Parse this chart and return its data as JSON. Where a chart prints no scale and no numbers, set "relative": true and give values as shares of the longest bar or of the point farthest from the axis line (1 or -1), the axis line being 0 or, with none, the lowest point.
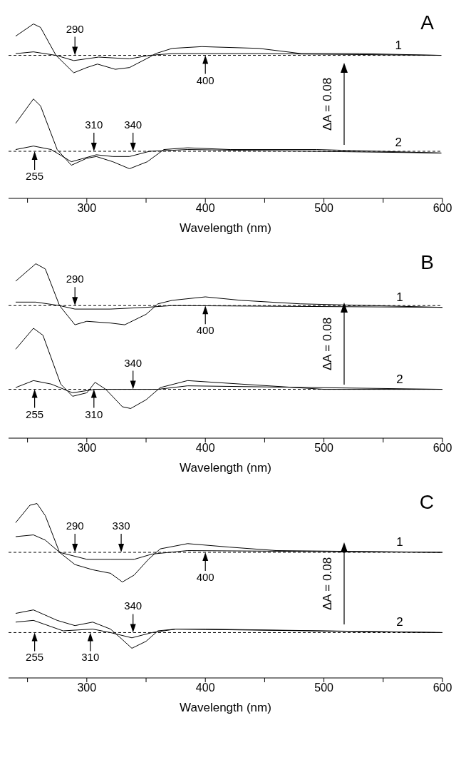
{
  "chart_data": [
    {
      "type": "line",
      "title": "A",
      "xlabel": "Wavelength (nm)",
      "relative": true,
      "marker": "none",
      "line_style": "solid",
      "xlim": [
        234,
        600
      ],
      "xticks": [
        {
          "value": 250,
          "label": null
        },
        300,
        {
          "value": 350,
          "label": null
        },
        400,
        {
          "value": 450,
          "label": null
        },
        500,
        {
          "value": 550,
          "label": null
        },
        600
      ],
      "series": [
        {
          "name": "1",
          "color": "#000000",
          "x": [
            240,
            255,
            261,
            274,
            289,
            300,
            309,
            324,
            336,
            353,
            358,
            372,
            397,
            445,
            481,
            530,
            599
          ],
          "values": [
            0.93,
            1.0,
            0.98,
            0.82,
            0.72,
            0.75,
            0.77,
            0.74,
            0.75,
            0.81,
            0.83,
            0.86,
            0.87,
            0.86,
            0.83,
            0.83,
            0.82
          ]
        },
        {
          "color": "#000000",
          "x": [
            240,
            255,
            274,
            289,
            310,
            336,
            353,
            372,
            445,
            599
          ],
          "values": [
            0.83,
            0.84,
            0.82,
            0.79,
            0.81,
            0.8,
            0.82,
            0.83,
            0.83,
            0.82
          ]
        },
        {
          "name": "2",
          "color": "#000000",
          "x": [
            240,
            255,
            261,
            275,
            287,
            300,
            308,
            322,
            336,
            351,
            365,
            385,
            421,
            494,
            599
          ],
          "values": [
            0.43,
            0.57,
            0.53,
            0.28,
            0.19,
            0.23,
            0.24,
            0.21,
            0.17,
            0.21,
            0.28,
            0.29,
            0.28,
            0.28,
            0.26
          ]
        },
        {
          "color": "#000000",
          "x": [
            240,
            255,
            270,
            287,
            308,
            322,
            336,
            353,
            385,
            599
          ],
          "values": [
            0.28,
            0.3,
            0.28,
            0.21,
            0.25,
            0.24,
            0.24,
            0.27,
            0.28,
            0.26
          ]
        }
      ],
      "ref_lines": [
        {
          "axis": "y",
          "value": 0.82,
          "line_style": "dashed",
          "color": "#000000"
        },
        {
          "axis": "y",
          "value": 0.27,
          "line_style": "dashed",
          "color": "#000000"
        }
      ],
      "annotations": [
        {
          "text": "290",
          "x": 290,
          "y": 0.82
        },
        {
          "text": "400",
          "x": 400,
          "y": 0.82
        },
        {
          "text": "310",
          "x": 306,
          "y": 0.27
        },
        {
          "text": "340",
          "x": 339,
          "y": 0.27
        },
        {
          "text": "255",
          "x": 256,
          "y": 0.27
        },
        "ΔA = 0.08"
      ]
    },
    {
      "type": "line",
      "title": "B",
      "xlabel": "Wavelength (nm)",
      "relative": true,
      "marker": "none",
      "line_style": "solid",
      "xlim": [
        234,
        600
      ],
      "xticks": [
        {
          "value": 250,
          "label": null
        },
        300,
        {
          "value": 350,
          "label": null
        },
        400,
        {
          "value": 450,
          "label": null
        },
        500,
        {
          "value": 550,
          "label": null
        },
        600
      ],
      "series": [
        {
          "name": "1",
          "color": "#000000",
          "x": [
            240,
            257,
            265,
            277,
            290,
            300,
            320,
            332,
            350,
            360,
            372,
            400,
            430,
            480,
            600
          ],
          "values": [
            0.9,
            1.0,
            0.97,
            0.76,
            0.65,
            0.67,
            0.66,
            0.65,
            0.71,
            0.77,
            0.79,
            0.81,
            0.79,
            0.77,
            0.75
          ]
        },
        {
          "color": "#000000",
          "x": [
            240,
            257,
            277,
            290,
            320,
            350,
            372,
            600
          ],
          "values": [
            0.78,
            0.78,
            0.76,
            0.74,
            0.74,
            0.75,
            0.76,
            0.75
          ]
        },
        {
          "name": "2",
          "color": "#000000",
          "x": [
            240,
            255,
            263,
            278,
            288,
            300,
            307,
            316,
            330,
            337,
            350,
            362,
            385,
            430,
            500,
            600
          ],
          "values": [
            0.51,
            0.63,
            0.59,
            0.31,
            0.24,
            0.26,
            0.32,
            0.28,
            0.18,
            0.17,
            0.22,
            0.29,
            0.33,
            0.31,
            0.28,
            0.28
          ]
        },
        {
          "color": "#000000",
          "x": [
            240,
            255,
            270,
            288,
            307,
            337,
            360,
            385,
            600
          ],
          "values": [
            0.29,
            0.33,
            0.31,
            0.26,
            0.28,
            0.28,
            0.28,
            0.3,
            0.28
          ]
        }
      ],
      "ref_lines": [
        {
          "axis": "y",
          "value": 0.76,
          "line_style": "dashed",
          "color": "#000000"
        },
        {
          "axis": "y",
          "value": 0.28,
          "line_style": "dashed",
          "color": "#000000"
        }
      ],
      "annotations": [
        {
          "text": "290",
          "x": 290,
          "y": 0.76
        },
        {
          "text": "400",
          "x": 400,
          "y": 0.76
        },
        {
          "text": "310",
          "x": 306,
          "y": 0.28
        },
        {
          "text": "340",
          "x": 339,
          "y": 0.28
        },
        {
          "text": "255",
          "x": 256,
          "y": 0.28
        },
        "ΔA = 0.08"
      ]
    },
    {
      "type": "line",
      "title": "C",
      "xlabel": "Wavelength (nm)",
      "relative": true,
      "marker": "none",
      "line_style": "solid",
      "xlim": [
        234,
        600
      ],
      "xticks": [
        {
          "value": 250,
          "label": null
        },
        300,
        {
          "value": 350,
          "label": null
        },
        400,
        {
          "value": 450,
          "label": null
        },
        500,
        {
          "value": 550,
          "label": null
        },
        600
      ],
      "series": [
        {
          "name": "1",
          "color": "#000000",
          "x": [
            240,
            252,
            258,
            265,
            277,
            290,
            305,
            320,
            330,
            340,
            352,
            362,
            385,
            420,
            460,
            600
          ],
          "values": [
            0.89,
            0.99,
            1.0,
            0.93,
            0.72,
            0.65,
            0.62,
            0.6,
            0.55,
            0.59,
            0.68,
            0.74,
            0.77,
            0.75,
            0.73,
            0.72
          ]
        },
        {
          "color": "#000000",
          "x": [
            240,
            255,
            265,
            277,
            300,
            320,
            340,
            355,
            385,
            600
          ],
          "values": [
            0.81,
            0.82,
            0.79,
            0.72,
            0.68,
            0.68,
            0.68,
            0.71,
            0.73,
            0.72
          ]
        },
        {
          "name": "2",
          "color": "#000000",
          "x": [
            240,
            255,
            275,
            290,
            305,
            320,
            330,
            338,
            350,
            360,
            375,
            400,
            600
          ],
          "values": [
            0.37,
            0.39,
            0.33,
            0.3,
            0.32,
            0.28,
            0.22,
            0.17,
            0.21,
            0.27,
            0.28,
            0.28,
            0.26
          ]
        },
        {
          "color": "#000000",
          "x": [
            240,
            255,
            280,
            305,
            320,
            338,
            355,
            375,
            600
          ],
          "values": [
            0.32,
            0.33,
            0.27,
            0.28,
            0.26,
            0.23,
            0.26,
            0.28,
            0.26
          ]
        }
      ],
      "ref_lines": [
        {
          "axis": "y",
          "value": 0.72,
          "line_style": "dashed",
          "color": "#000000"
        },
        {
          "axis": "y",
          "value": 0.26,
          "line_style": "dashed",
          "color": "#000000"
        }
      ],
      "annotations": [
        {
          "text": "290",
          "x": 290,
          "y": 0.72
        },
        {
          "text": "330",
          "x": 329,
          "y": 0.72
        },
        {
          "text": "400",
          "x": 400,
          "y": 0.72
        },
        {
          "text": "310",
          "x": 303,
          "y": 0.26
        },
        {
          "text": "340",
          "x": 339,
          "y": 0.26
        },
        {
          "text": "255",
          "x": 256,
          "y": 0.26
        },
        "ΔA = 0.08"
      ]
    }
  ]
}
